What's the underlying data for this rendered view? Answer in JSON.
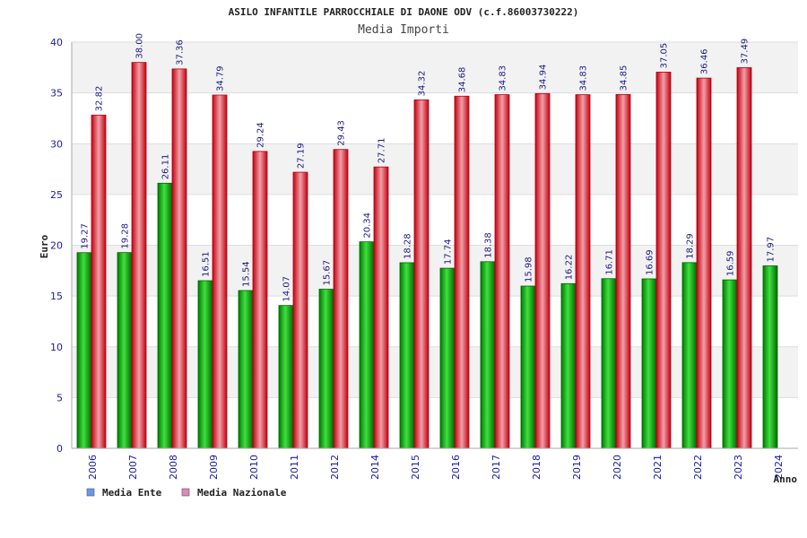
{
  "chart_data": {
    "type": "bar",
    "title": "ASILO INFANTILE PARROCCHIALE DI DAONE ODV (c.f.86003730222)",
    "subtitle": "Media Importi",
    "xlabel": "Anno",
    "ylabel": "Euro",
    "ylim": [
      0,
      40
    ],
    "yticks": [
      0,
      5,
      10,
      15,
      20,
      25,
      30,
      35,
      40
    ],
    "grid": true,
    "legend_position": "bottom-left",
    "categories": [
      "2006",
      "2007",
      "2008",
      "2009",
      "2010",
      "2011",
      "2012",
      "2014",
      "2015",
      "2016",
      "2017",
      "2018",
      "2019",
      "2020",
      "2021",
      "2022",
      "2023",
      "2024"
    ],
    "series": [
      {
        "name": "Media Ente",
        "color": "#00a000",
        "legend_color": "#6699ee",
        "values": [
          19.27,
          19.28,
          26.11,
          16.51,
          15.54,
          14.07,
          15.67,
          20.34,
          18.28,
          17.74,
          18.38,
          15.98,
          16.22,
          16.71,
          16.69,
          18.29,
          16.59,
          17.97
        ]
      },
      {
        "name": "Media Nazionale",
        "color": "#e8202a",
        "legend_color": "#dd88bb",
        "values": [
          32.82,
          38.0,
          37.36,
          34.79,
          29.24,
          27.19,
          29.43,
          27.71,
          34.32,
          34.68,
          34.83,
          34.94,
          34.83,
          34.85,
          37.05,
          36.46,
          37.49,
          null
        ]
      }
    ],
    "value_labels": [
      [
        "19.27",
        "19.28",
        "26.11",
        "16.51",
        "15.54",
        "14.07",
        "15.67",
        "20.34",
        "18.28",
        "17.74",
        "18.38",
        "15.98",
        "16.22",
        "16.71",
        "16.69",
        "18.29",
        "16.59",
        "17.97"
      ],
      [
        "32.82",
        "38.00",
        "37.36",
        "34.79",
        "29.24",
        "27.19",
        "29.43",
        "27.71",
        "34.32",
        "34.68",
        "34.83",
        "34.94",
        "34.83",
        "34.85",
        "37.05",
        "36.46",
        "37.49",
        null
      ]
    ]
  }
}
